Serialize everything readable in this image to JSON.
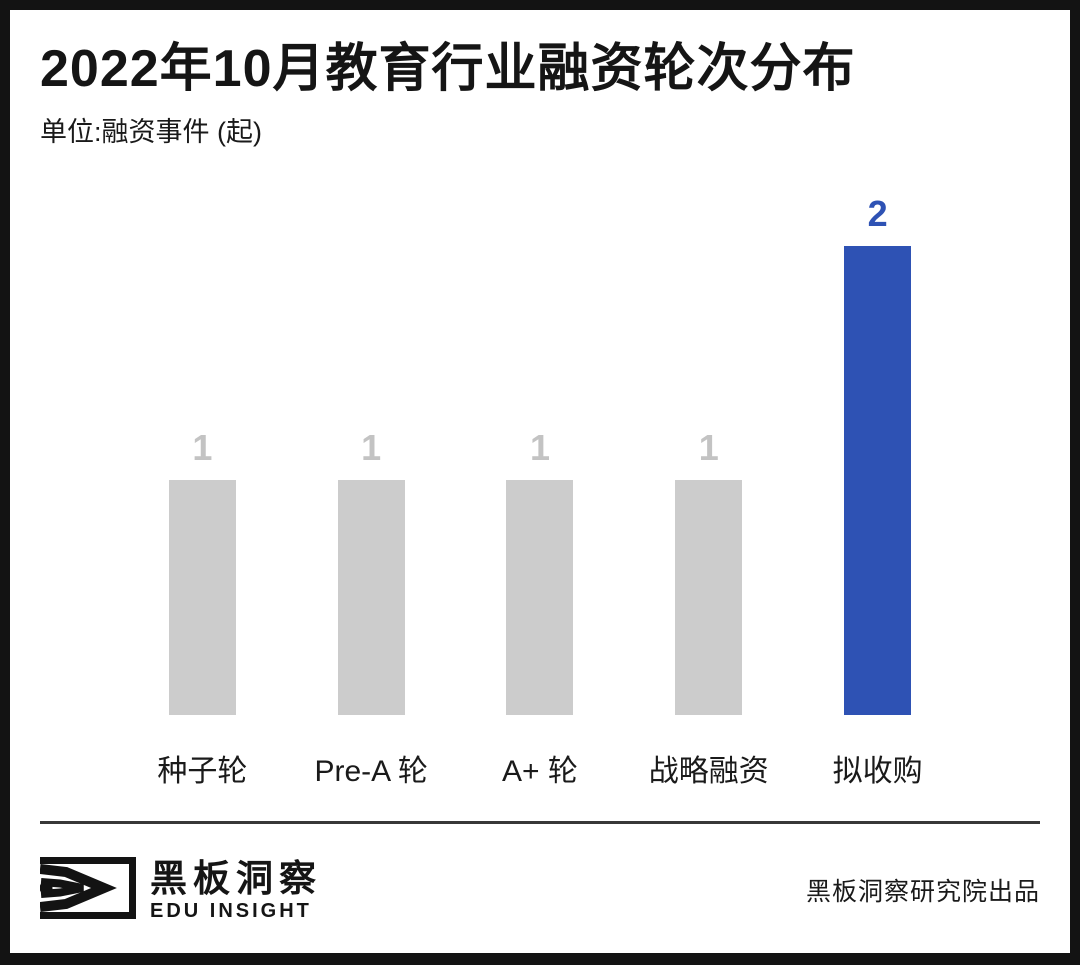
{
  "title": "2022年10月教育行业融资轮次分布",
  "subtitle": "单位:融资事件 (起)",
  "chart_data": {
    "type": "bar",
    "title": "2022年10月教育行业融资轮次分布",
    "categories": [
      "种子轮",
      "Pre-A 轮",
      "A+ 轮",
      "战略融资",
      "拟收购"
    ],
    "values": [
      1,
      1,
      1,
      1,
      2
    ],
    "highlight_index": 4,
    "unit_label": "融资事件 (起)",
    "xlabel": "",
    "ylabel": "融资事件 (起)",
    "ylim": [
      0,
      2
    ],
    "grid": false,
    "legend": false,
    "bar_color_default": "#cccccc",
    "bar_color_highlight": "#2e52b4",
    "value_label_color_default": "#c3c3c3",
    "value_label_color_highlight": "#2e52b4"
  },
  "footer": {
    "brand_cn": "黑板洞察",
    "brand_en": "EDU INSIGHT",
    "credit": "黑板洞察研究院出品"
  },
  "colors": {
    "frame": "#131313",
    "background": "#ffffff",
    "divider": "#383838",
    "text": "#151515"
  }
}
